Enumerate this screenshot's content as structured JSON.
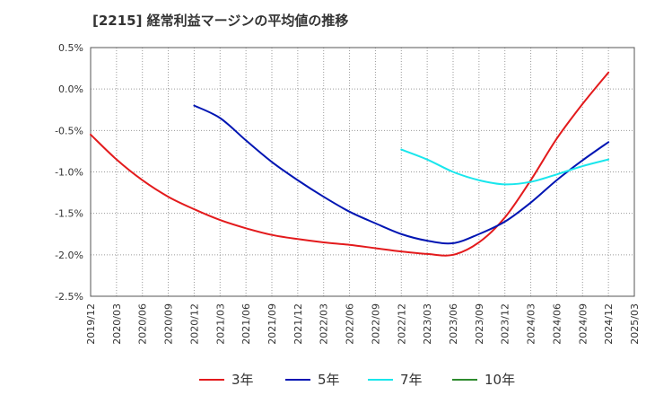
{
  "chart_data": {
    "type": "line",
    "title": "[2215]  経常利益マージンの平均値の推移",
    "xlabel": "",
    "ylabel": "",
    "ylim": [
      -2.5,
      0.5
    ],
    "y_ticks": [
      "0.5%",
      "0.0%",
      "-0.5%",
      "-1.0%",
      "-1.5%",
      "-2.0%",
      "-2.5%"
    ],
    "x_ticks": [
      "2019/12",
      "2020/03",
      "2020/06",
      "2020/09",
      "2020/12",
      "2021/03",
      "2021/06",
      "2021/09",
      "2021/12",
      "2022/03",
      "2022/06",
      "2022/09",
      "2022/12",
      "2023/03",
      "2023/06",
      "2023/09",
      "2023/12",
      "2024/03",
      "2024/06",
      "2024/09",
      "2024/12",
      "2025/03"
    ],
    "grid": true,
    "legend_position": "bottom",
    "series": [
      {
        "name": "3年",
        "color": "#e31a1c",
        "points": [
          [
            "2019/12",
            -0.55
          ],
          [
            "2020/03",
            -0.85
          ],
          [
            "2020/06",
            -1.1
          ],
          [
            "2020/09",
            -1.3
          ],
          [
            "2020/12",
            -1.45
          ],
          [
            "2021/03",
            -1.58
          ],
          [
            "2021/06",
            -1.68
          ],
          [
            "2021/09",
            -1.76
          ],
          [
            "2021/12",
            -1.81
          ],
          [
            "2022/03",
            -1.85
          ],
          [
            "2022/06",
            -1.88
          ],
          [
            "2022/09",
            -1.92
          ],
          [
            "2022/12",
            -1.96
          ],
          [
            "2023/03",
            -1.99
          ],
          [
            "2023/06",
            -2.0
          ],
          [
            "2023/09",
            -1.85
          ],
          [
            "2023/12",
            -1.55
          ],
          [
            "2024/03",
            -1.1
          ],
          [
            "2024/06",
            -0.6
          ],
          [
            "2024/09",
            -0.18
          ],
          [
            "2024/12",
            0.2
          ]
        ]
      },
      {
        "name": "5年",
        "color": "#0015b3",
        "points": [
          [
            "2020/12",
            -0.2
          ],
          [
            "2021/03",
            -0.35
          ],
          [
            "2021/06",
            -0.62
          ],
          [
            "2021/09",
            -0.88
          ],
          [
            "2021/12",
            -1.1
          ],
          [
            "2022/03",
            -1.3
          ],
          [
            "2022/06",
            -1.48
          ],
          [
            "2022/09",
            -1.62
          ],
          [
            "2022/12",
            -1.75
          ],
          [
            "2023/03",
            -1.83
          ],
          [
            "2023/06",
            -1.86
          ],
          [
            "2023/09",
            -1.75
          ],
          [
            "2023/12",
            -1.6
          ],
          [
            "2024/03",
            -1.37
          ],
          [
            "2024/06",
            -1.1
          ],
          [
            "2024/09",
            -0.86
          ],
          [
            "2024/12",
            -0.64
          ]
        ]
      },
      {
        "name": "7年",
        "color": "#19e6ec",
        "points": [
          [
            "2022/12",
            -0.73
          ],
          [
            "2023/03",
            -0.85
          ],
          [
            "2023/06",
            -1.0
          ],
          [
            "2023/09",
            -1.1
          ],
          [
            "2023/12",
            -1.15
          ],
          [
            "2024/03",
            -1.12
          ],
          [
            "2024/06",
            -1.03
          ],
          [
            "2024/09",
            -0.93
          ],
          [
            "2024/12",
            -0.85
          ]
        ]
      },
      {
        "name": "10年",
        "color": "#2e8b2e",
        "points": []
      }
    ]
  }
}
